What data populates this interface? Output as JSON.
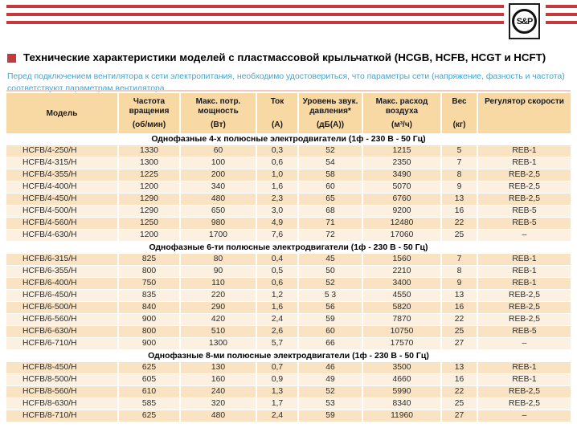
{
  "logo": {
    "text": "S&P"
  },
  "header": {
    "title": "Технические характеристики моделей с пластмассовой крыльчаткой (HCGB, HCFB, HCGT и HCFT)",
    "note": "Перед подключением вентилятора к сети электропитания, необходимо удостовериться, что параметры сети (напряжение, фазность и частота) соответствуют параметрам вентилятора."
  },
  "colors": {
    "brand_red": "#C5393C",
    "title_square_red": "#CE2B26",
    "note_blue": "#3BA6DB",
    "header_tan": "#F8D9A4",
    "row_peach": "#FAE3C2",
    "row_cream": "#FCF1E0"
  },
  "table": {
    "columns": [
      {
        "main": "Модель",
        "unit": ""
      },
      {
        "main": "Частота вращения",
        "unit": "(об/мин)"
      },
      {
        "main": "Макс. потр. мощность",
        "unit": "(Вт)"
      },
      {
        "main": "Ток",
        "unit": "(А)"
      },
      {
        "main": "Уровень звук. давления*",
        "unit": "(дБ(А))"
      },
      {
        "main": "Макс. расход воздуха",
        "unit": "(м³/ч)"
      },
      {
        "main": "Вес",
        "unit": "(кг)"
      },
      {
        "main": "Регулятор скорости",
        "unit": ""
      }
    ],
    "sections": [
      {
        "title": "Однофазные 4-х полюсные электродвигатели (1ф - 230 В - 50 Гц)",
        "rows": [
          [
            "HCFB/4-250/H",
            "1330",
            "60",
            "0,3",
            "52",
            "1215",
            "5",
            "REB-1"
          ],
          [
            "HCFB/4-315/H",
            "1300",
            "100",
            "0,6",
            "54",
            "2350",
            "7",
            "REB-1"
          ],
          [
            "HCFB/4-355/H",
            "1225",
            "200",
            "1,0",
            "58",
            "3490",
            "8",
            "REB-2,5"
          ],
          [
            "HCFB/4-400/H",
            "1200",
            "340",
            "1,6",
            "60",
            "5070",
            "9",
            "REB-2,5"
          ],
          [
            "HCFB/4-450/H",
            "1290",
            "480",
            "2,3",
            "65",
            "6760",
            "13",
            "REB-2,5"
          ],
          [
            "HCFB/4-500/H",
            "1290",
            "650",
            "3,0",
            "68",
            "9200",
            "16",
            "REB-5"
          ],
          [
            "HCFB/4-560/H",
            "1250",
            "980",
            "4,9",
            "71",
            "12480",
            "22",
            "REB-5"
          ],
          [
            "HCFB/4-630/H",
            "1200",
            "1700",
            "7,6",
            "72",
            "17060",
            "25",
            "–"
          ]
        ]
      },
      {
        "title": "Однофазные 6-ти полюсные электродвигатели (1ф - 230 В - 50 Гц)",
        "rows": [
          [
            "HCFB/6-315/H",
            "825",
            "80",
            "0,4",
            "45",
            "1560",
            "7",
            "REB-1"
          ],
          [
            "HCFB/6-355/H",
            "800",
            "90",
            "0,5",
            "50",
            "2210",
            "8",
            "REB-1"
          ],
          [
            "HCFB/6-400/H",
            "750",
            "110",
            "0,6",
            "52",
            "3400",
            "9",
            "REB-1"
          ],
          [
            "HCFB/6-450/H",
            "835",
            "220",
            "1,2",
            "5 3",
            "4550",
            "13",
            "REB-2,5"
          ],
          [
            "HCFB/6-500/H",
            "840",
            "290",
            "1,6",
            "56",
            "5820",
            "16",
            "REB-2,5"
          ],
          [
            "HCFB/6-560/H",
            "900",
            "420",
            "2,4",
            "59",
            "7870",
            "22",
            "REB-2,5"
          ],
          [
            "HCFB/6-630/H",
            "800",
            "510",
            "2,6",
            "60",
            "10750",
            "25",
            "REB-5"
          ],
          [
            "HCFB/6-710/H",
            "900",
            "1300",
            "5,7",
            "66",
            "17570",
            "27",
            "–"
          ]
        ]
      },
      {
        "title": "Однофазные 8-ми полюсные электродвигатели (1ф - 230 В - 50 Гц)",
        "rows": [
          [
            "HCFB/8-450/H",
            "625",
            "130",
            "0,7",
            "46",
            "3500",
            "13",
            "REB-1"
          ],
          [
            "HCFB/8-500/H",
            "605",
            "160",
            "0,9",
            "49",
            "4660",
            "16",
            "REB-1"
          ],
          [
            "HCFB/8-560/H",
            "610",
            "240",
            "1,3",
            "52",
            "5990",
            "22",
            "REB-2,5"
          ],
          [
            "HCFB/8-630/H",
            "585",
            "320",
            "1,7",
            "53",
            "8340",
            "25",
            "REB-2,5"
          ],
          [
            "HCFB/8-710/H",
            "625",
            "480",
            "2,4",
            "59",
            "11960",
            "27",
            "–"
          ]
        ]
      }
    ]
  }
}
